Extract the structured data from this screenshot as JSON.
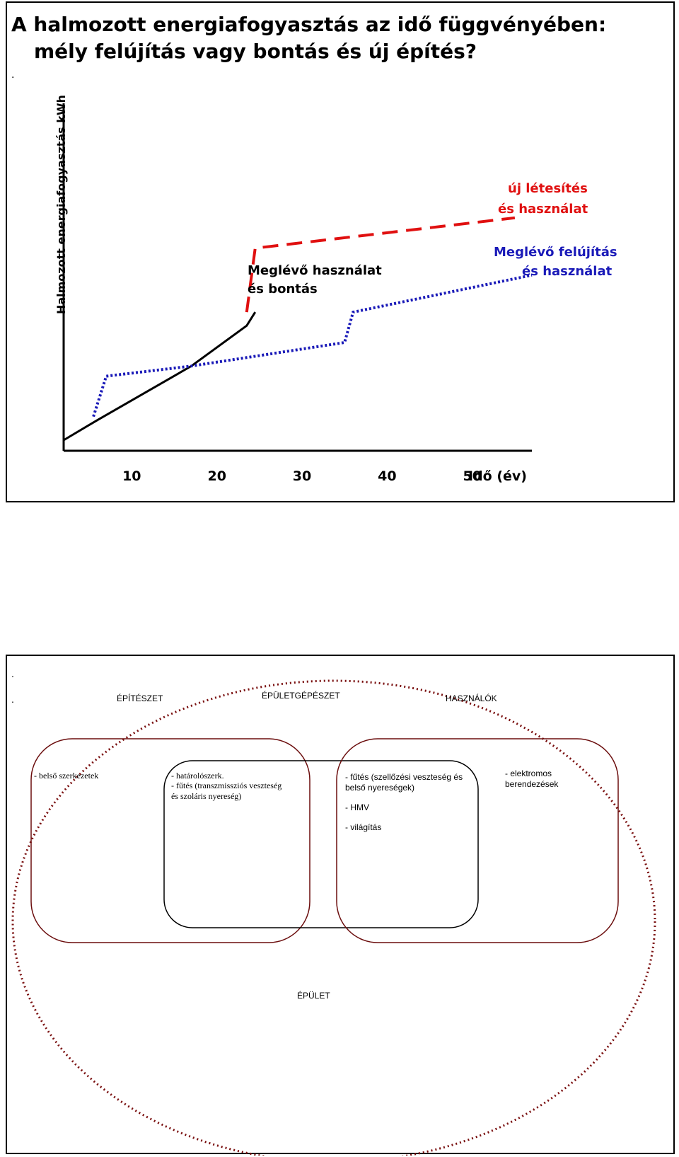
{
  "chart": {
    "title_line1": "A halmozott energiafogyasztás az idő függvényében:",
    "title_line2": "mély felújítás vagy bontás és új építés?",
    "bullet": ".",
    "ylabel": "Halmozott energiafogyasztás kWh",
    "x_unit_label": "Idő (év)",
    "annotation_new_line1": "új létesítés",
    "annotation_new_line2": "és használat",
    "annotation_existing_line1": "Meglévő használat",
    "annotation_existing_line2": "és bontás",
    "annotation_renov_line1": "Meglévő felújítás",
    "annotation_renov_line2": "és használat"
  },
  "chart_data": {
    "type": "line",
    "title": "A halmozott energiafogyasztás az idő függvényében: mély felújítás vagy bontás és új építés?",
    "xlabel": "Idő (év)",
    "ylabel": "Halmozott energiafogyasztás kWh",
    "x_ticks": [
      10,
      20,
      30,
      40,
      50
    ],
    "xlim": [
      2,
      57
    ],
    "ylim": [
      0,
      100
    ],
    "grid": false,
    "legend": "none",
    "series": [
      {
        "name": "Meglévő használat és bontás",
        "color": "#000000",
        "style": "solid",
        "x": [
          2,
          6,
          17,
          23.5,
          24.5
        ],
        "y": [
          0,
          6,
          22,
          34,
          38
        ]
      },
      {
        "name": "Meglévő felújítás és használat",
        "color": "#1a1ab8",
        "style": "dotted",
        "x": [
          5.5,
          7,
          17,
          35,
          36,
          57
        ],
        "y": [
          7,
          19,
          22,
          29,
          38,
          49
        ]
      },
      {
        "name": "új létesítés és használat",
        "color": "#e01010",
        "style": "dashed",
        "x": [
          23.5,
          24.5,
          55
        ],
        "y": [
          38,
          57,
          66
        ]
      }
    ],
    "tick_labels": [
      "10",
      "20",
      "30",
      "40",
      "50"
    ]
  },
  "venn": {
    "bullets": [
      ".",
      "."
    ],
    "headers": {
      "architecture": "ÉPÍTÉSZET",
      "building_services": "ÉPÜLETGÉPÉSZET",
      "users": "HASZNÁLÓK"
    },
    "footer": "ÉPÜLET",
    "items_left": "- belső szerkezetek",
    "items_center": [
      "- határolószerk.",
      "- fűtés (transzmissziós veszteség",
      "és szoláris nyereség)"
    ],
    "items_right_center": [
      "- fűtés (szellőzési veszteség és",
      "belső nyereségek)",
      "- HMV",
      "- világítás"
    ],
    "items_right": [
      "- elektromos",
      "berendezések"
    ],
    "colors": {
      "ellipse": "#7a1010",
      "box_outline": "#6b0d0d",
      "inner_box": "#000000"
    }
  }
}
